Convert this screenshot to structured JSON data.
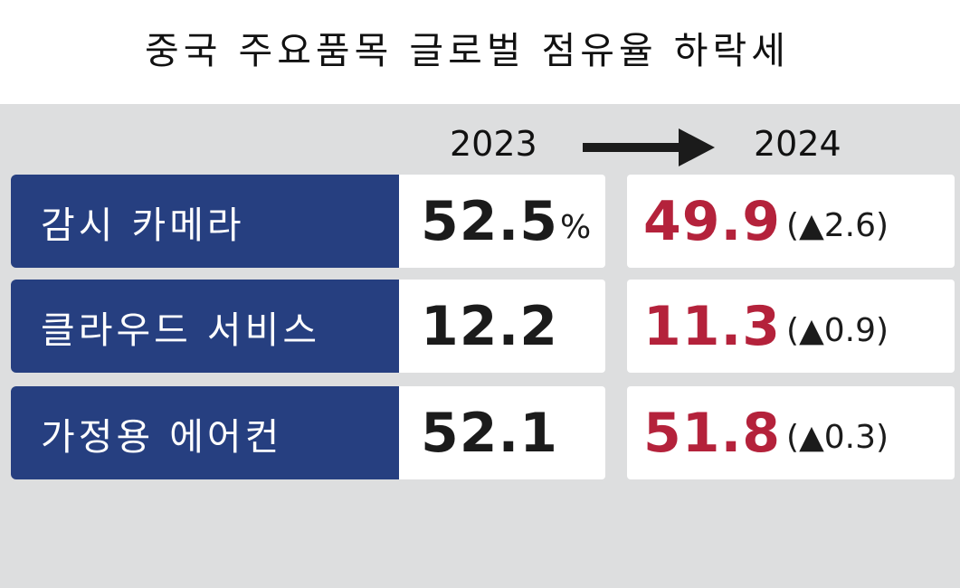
{
  "title": "중국 주요품목 글로벌 점유율 하락세",
  "header": {
    "year_from": "2023",
    "year_to": "2024"
  },
  "unit": "%",
  "chart_data": {
    "type": "table",
    "title": "중국 주요품목 글로벌 점유율 하락세",
    "columns": [
      "2023",
      "2024"
    ],
    "rows": [
      {
        "label": "감시 카메라",
        "v2023": "52.5",
        "v2024": "49.9",
        "change": "(▲2.6)"
      },
      {
        "label": "클라우드 서비스",
        "v2023": "12.2",
        "v2024": "11.3",
        "change": "(▲0.9)"
      },
      {
        "label": "가정용 에어컨",
        "v2023": "52.1",
        "v2024": "51.8",
        "change": "(▲0.3)"
      }
    ]
  },
  "colors": {
    "label_bg": "#263f80",
    "highlight": "#b4223b",
    "background": "#dddedf"
  }
}
